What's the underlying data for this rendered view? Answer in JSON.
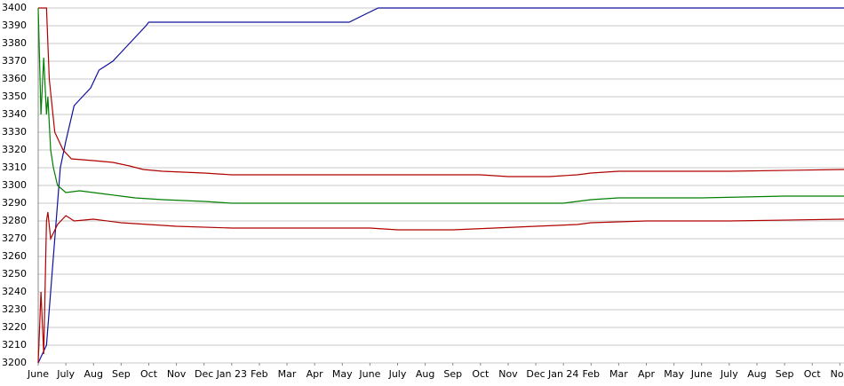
{
  "chart_data": {
    "type": "line",
    "xlim": [
      0,
      29.15
    ],
    "xticks": [
      {
        "value": 0,
        "label": "June"
      },
      {
        "value": 1,
        "label": "July"
      },
      {
        "value": 2,
        "label": "Aug"
      },
      {
        "value": 3,
        "label": "Sep"
      },
      {
        "value": 4,
        "label": "Oct"
      },
      {
        "value": 5,
        "label": "Nov"
      },
      {
        "value": 6,
        "label": "Dec"
      },
      {
        "value": 7,
        "label": "Jan 23"
      },
      {
        "value": 8,
        "label": "Feb"
      },
      {
        "value": 9,
        "label": "Mar"
      },
      {
        "value": 10,
        "label": "Apr"
      },
      {
        "value": 11,
        "label": "May"
      },
      {
        "value": 12,
        "label": "June"
      },
      {
        "value": 13,
        "label": "July"
      },
      {
        "value": 14,
        "label": "Aug"
      },
      {
        "value": 15,
        "label": "Sep"
      },
      {
        "value": 16,
        "label": "Oct"
      },
      {
        "value": 17,
        "label": "Nov"
      },
      {
        "value": 18,
        "label": "Dec"
      },
      {
        "value": 19,
        "label": "Jan 24"
      },
      {
        "value": 20,
        "label": "Feb"
      },
      {
        "value": 21,
        "label": "Mar"
      },
      {
        "value": 22,
        "label": "Apr"
      },
      {
        "value": 23,
        "label": "May"
      },
      {
        "value": 24,
        "label": "June"
      },
      {
        "value": 25,
        "label": "July"
      },
      {
        "value": 26,
        "label": "Aug"
      },
      {
        "value": 27,
        "label": "Sep"
      },
      {
        "value": 28,
        "label": "Oct"
      },
      {
        "value": 29,
        "label": "Nov"
      }
    ],
    "ylim": [
      3200,
      3400
    ],
    "yticks": [
      3200,
      3210,
      3220,
      3230,
      3240,
      3250,
      3260,
      3270,
      3280,
      3290,
      3300,
      3310,
      3320,
      3330,
      3340,
      3350,
      3360,
      3370,
      3380,
      3390,
      3400
    ],
    "grid": true,
    "series": [
      {
        "color": "#10109a",
        "x": [
          0,
          0.3,
          0.6,
          0.8,
          1,
          1.3,
          1.6,
          1.9,
          2.2,
          2.7,
          3.0,
          3.3,
          3.6,
          3.9,
          4.0,
          11.25,
          11.9,
          12.3,
          29.15
        ],
        "values": [
          3200,
          3210,
          3270,
          3310,
          3325,
          3345,
          3350,
          3355,
          3365,
          3370,
          3375,
          3380,
          3385,
          3390,
          3392,
          3392,
          3397,
          3400,
          3400
        ]
      },
      {
        "color": "#b00000",
        "x": [
          0,
          0.3,
          0.4,
          0.6,
          0.9,
          1.2,
          2,
          2.7,
          3.3,
          3.8,
          4.5,
          6,
          7,
          14,
          16,
          17,
          18.5,
          19.5,
          20,
          21,
          25,
          29.15
        ],
        "values": [
          3400,
          3400,
          3360,
          3330,
          3320,
          3315,
          3314,
          3313,
          3311,
          3309,
          3308,
          3307,
          3306,
          3306,
          3306,
          3305,
          3305,
          3306,
          3307,
          3308,
          3308,
          3309
        ]
      },
      {
        "color": "#007f00",
        "x": [
          0,
          0.1,
          0.2,
          0.3,
          0.35,
          0.45,
          0.55,
          0.7,
          1,
          1.5,
          2,
          2.5,
          3,
          3.5,
          4.5,
          6,
          7,
          19,
          19.5,
          20,
          21,
          24,
          27,
          29.15
        ],
        "values": [
          3400,
          3340,
          3372,
          3340,
          3350,
          3320,
          3310,
          3300,
          3296,
          3297,
          3296,
          3295,
          3294,
          3293,
          3292,
          3291,
          3290,
          3290,
          3291,
          3292,
          3293,
          3293,
          3294,
          3294
        ]
      },
      {
        "color": "#b00000",
        "x": [
          0,
          0.1,
          0.2,
          0.3,
          0.35,
          0.45,
          0.7,
          1,
          1.3,
          2,
          3,
          4,
          5,
          7,
          12,
          13,
          15,
          16.5,
          18,
          19.5,
          20,
          22,
          25,
          29.15
        ],
        "values": [
          3200,
          3240,
          3205,
          3280,
          3285,
          3270,
          3278,
          3283,
          3280,
          3281,
          3279,
          3278,
          3277,
          3276,
          3276,
          3275,
          3275,
          3276,
          3277,
          3278,
          3279,
          3280,
          3280,
          3281
        ]
      }
    ]
  }
}
